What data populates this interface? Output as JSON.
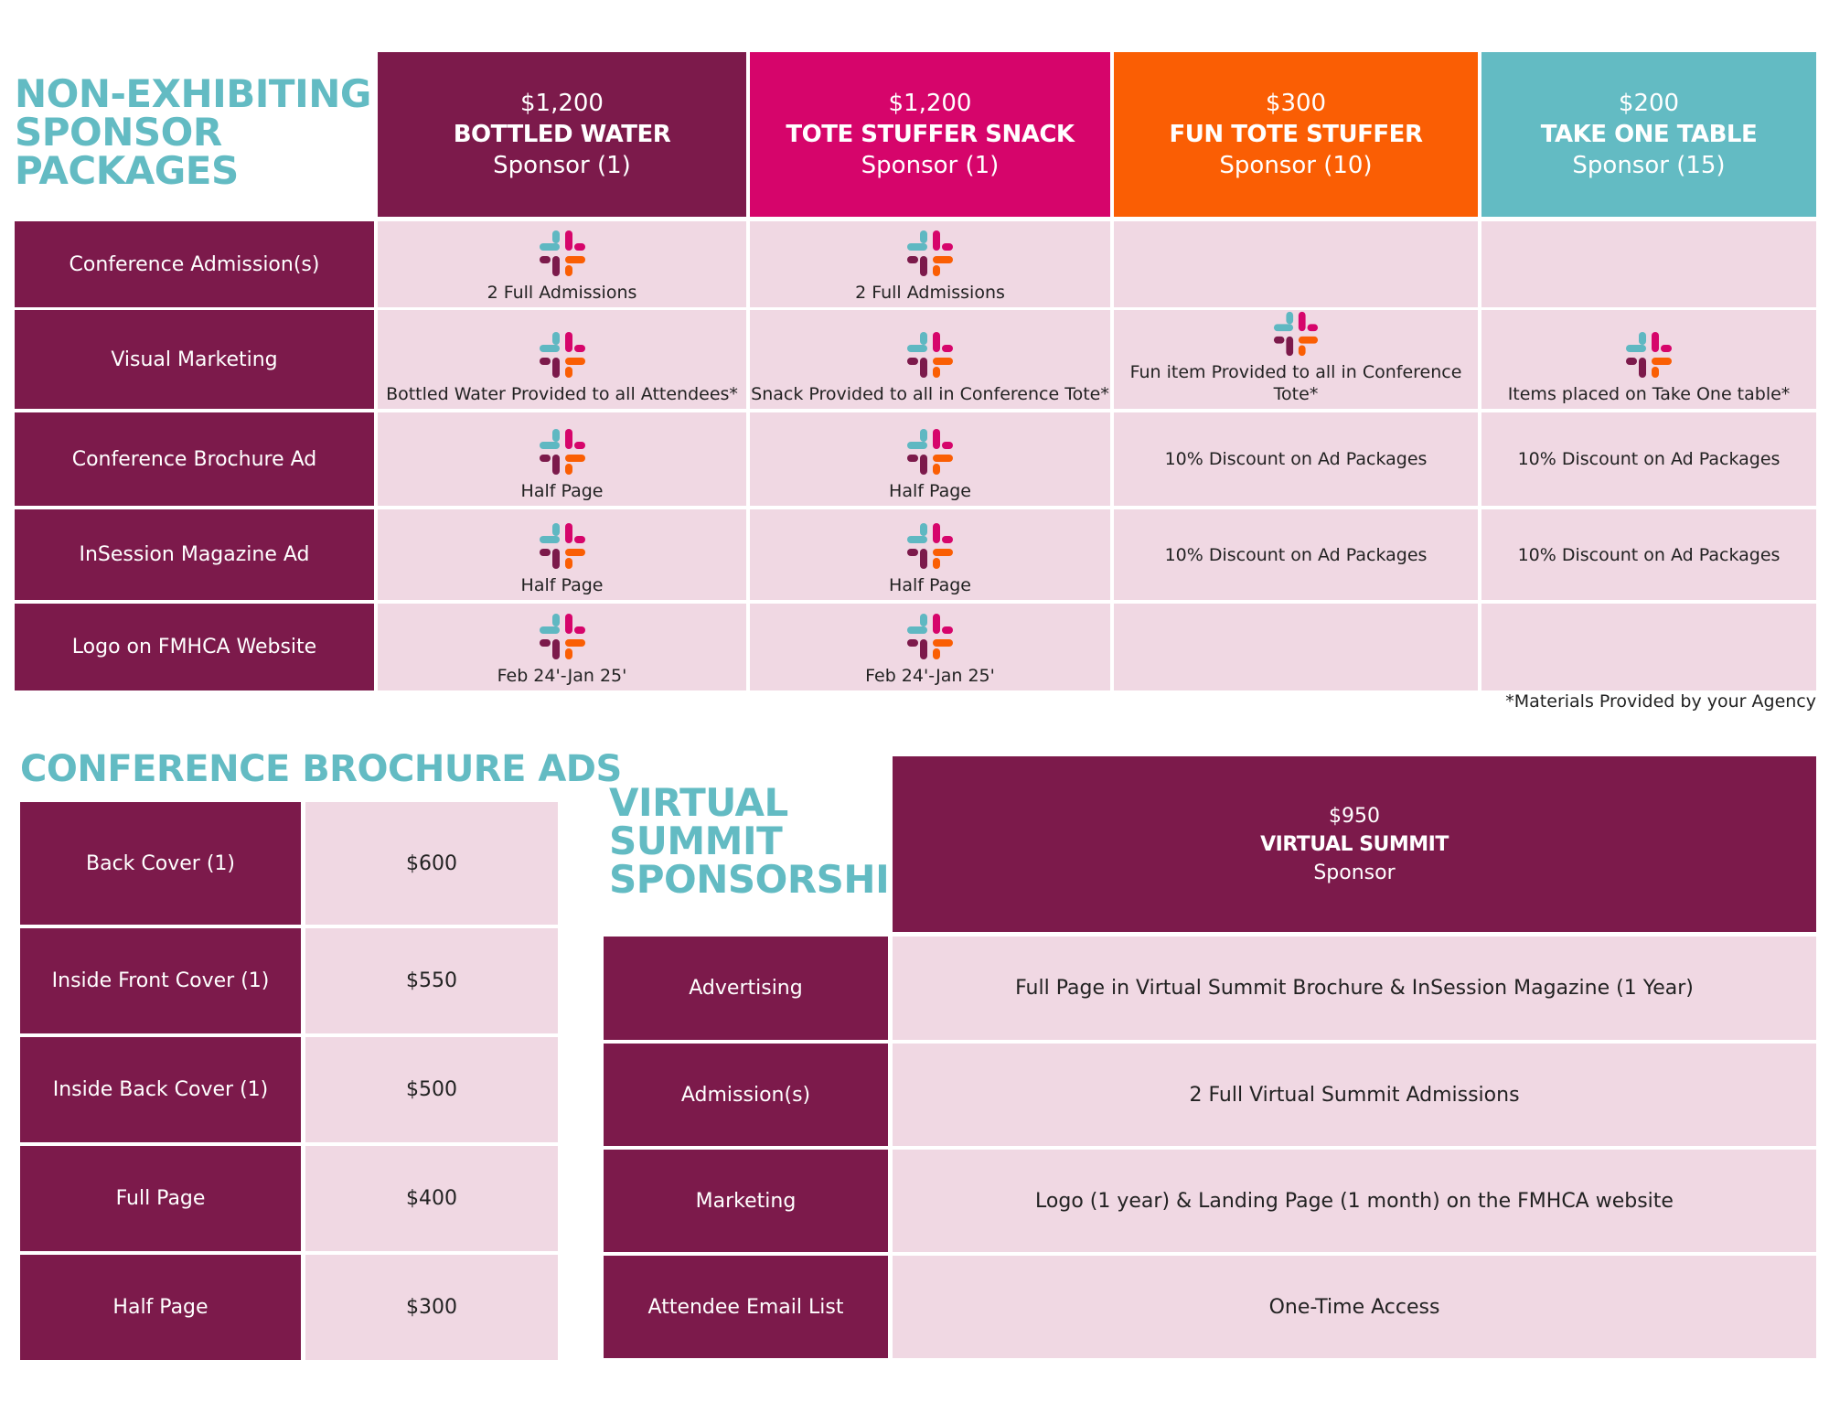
{
  "colors": {
    "plum": "#7c1a4b",
    "magenta": "#d6056b",
    "orange": "#fa5e04",
    "teal": "#63bbc3",
    "light_pink": "#f0d8e3"
  },
  "non_exhibiting": {
    "title_lines": [
      "NON-EXHIBITING",
      "SPONSOR",
      "PACKAGES"
    ],
    "packages": [
      {
        "price": "$1,200",
        "name": "BOTTLED WATER",
        "sponsor": "Sponsor (1)"
      },
      {
        "price": "$1,200",
        "name": "TOTE STUFFER SNACK",
        "sponsor": "Sponsor (1)"
      },
      {
        "price": "$300",
        "name": "FUN TOTE STUFFER",
        "sponsor": "Sponsor (10)"
      },
      {
        "price": "$200",
        "name": "TAKE ONE TABLE",
        "sponsor": "Sponsor (15)"
      }
    ],
    "rows": [
      {
        "label": "Conference Admission(s)",
        "cells": [
          {
            "icon": "slack-logo-icon",
            "text": "2 Full Admissions"
          },
          {
            "icon": "slack-logo-icon",
            "text": "2 Full Admissions"
          },
          {
            "icon": "",
            "text": ""
          },
          {
            "icon": "",
            "text": ""
          }
        ]
      },
      {
        "label": "Visual Marketing",
        "cells": [
          {
            "icon": "slack-logo-icon",
            "text": "Bottled Water Provided to all Attendees*"
          },
          {
            "icon": "slack-logo-icon",
            "text": "Snack Provided to all in Conference Tote*"
          },
          {
            "icon": "slack-logo-icon",
            "text": "Fun item Provided to all in Conference Tote*"
          },
          {
            "icon": "slack-logo-icon",
            "text": "Items placed on Take One table*"
          }
        ]
      },
      {
        "label": "Conference Brochure Ad",
        "cells": [
          {
            "icon": "slack-logo-icon",
            "text": "Half Page"
          },
          {
            "icon": "slack-logo-icon",
            "text": "Half Page"
          },
          {
            "icon": "",
            "text": "10% Discount on Ad Packages"
          },
          {
            "icon": "",
            "text": "10% Discount on Ad Packages"
          }
        ]
      },
      {
        "label": "InSession Magazine Ad",
        "cells": [
          {
            "icon": "slack-logo-icon",
            "text": "Half Page"
          },
          {
            "icon": "slack-logo-icon",
            "text": "Half Page"
          },
          {
            "icon": "",
            "text": "10% Discount on Ad Packages"
          },
          {
            "icon": "",
            "text": "10% Discount on Ad Packages"
          }
        ]
      },
      {
        "label": "Logo on FMHCA Website",
        "cells": [
          {
            "icon": "slack-logo-icon",
            "text": "Feb 24'-Jan 25'"
          },
          {
            "icon": "slack-logo-icon",
            "text": "Feb 24'-Jan 25'"
          },
          {
            "icon": "",
            "text": ""
          },
          {
            "icon": "",
            "text": ""
          }
        ]
      }
    ],
    "footnote": "*Materials Provided by your Agency"
  },
  "brochure_ads": {
    "title": "CONFERENCE BROCHURE ADS",
    "rows": [
      {
        "label": "Back Cover (1)",
        "price": "$600"
      },
      {
        "label": "Inside Front Cover (1)",
        "price": "$550"
      },
      {
        "label": "Inside Back Cover (1)",
        "price": "$500"
      },
      {
        "label": "Full Page",
        "price": "$400"
      },
      {
        "label": "Half Page",
        "price": "$300"
      }
    ]
  },
  "virtual_summit": {
    "title_lines": [
      "VIRTUAL",
      "SUMMIT",
      "SPONSORSHIP"
    ],
    "header": {
      "price": "$950",
      "name": "VIRTUAL SUMMIT",
      "sponsor": "Sponsor"
    },
    "rows": [
      {
        "label": "Advertising",
        "value": "Full Page in Virtual Summit Brochure & InSession Magazine (1 Year)"
      },
      {
        "label": "Admission(s)",
        "value": "2 Full Virtual Summit Admissions"
      },
      {
        "label": "Marketing",
        "value": "Logo (1 year) & Landing Page (1 month) on the FMHCA website"
      },
      {
        "label": "Attendee Email List",
        "value": "One-Time Access"
      }
    ]
  }
}
